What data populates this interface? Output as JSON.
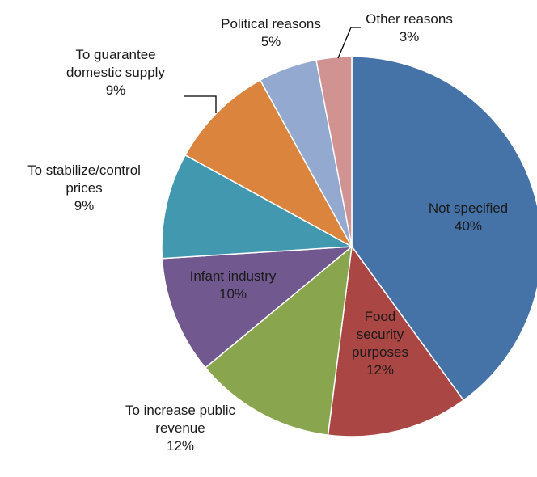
{
  "chart_data": {
    "type": "pie",
    "title": "",
    "slices": [
      {
        "label": [
          "Not specified"
        ],
        "value": 40,
        "value_label": "40%",
        "color": "#4572A7"
      },
      {
        "label": [
          "Food",
          "security",
          "purposes"
        ],
        "value": 12,
        "value_label": "12%",
        "color": "#AA4643"
      },
      {
        "label": [
          "To increase public",
          "revenue"
        ],
        "value": 12,
        "value_label": "12%",
        "color": "#89A54E"
      },
      {
        "label": [
          "Infant industry"
        ],
        "value": 10,
        "value_label": "10%",
        "color": "#71588F"
      },
      {
        "label": [
          "To stabilize/control",
          "prices"
        ],
        "value": 9,
        "value_label": "9%",
        "color": "#4198AF"
      },
      {
        "label": [
          "To guarantee",
          "domestic supply"
        ],
        "value": 9,
        "value_label": "9%",
        "color": "#DB843D"
      },
      {
        "label": [
          "Political reasons"
        ],
        "value": 5,
        "value_label": "5%",
        "color": "#93A9CF"
      },
      {
        "label": [
          "Other reasons"
        ],
        "value": 3,
        "value_label": "3%",
        "color": "#D19392"
      }
    ],
    "start_angle": "12 o'clock",
    "direction": "clockwise",
    "legend": "none"
  }
}
